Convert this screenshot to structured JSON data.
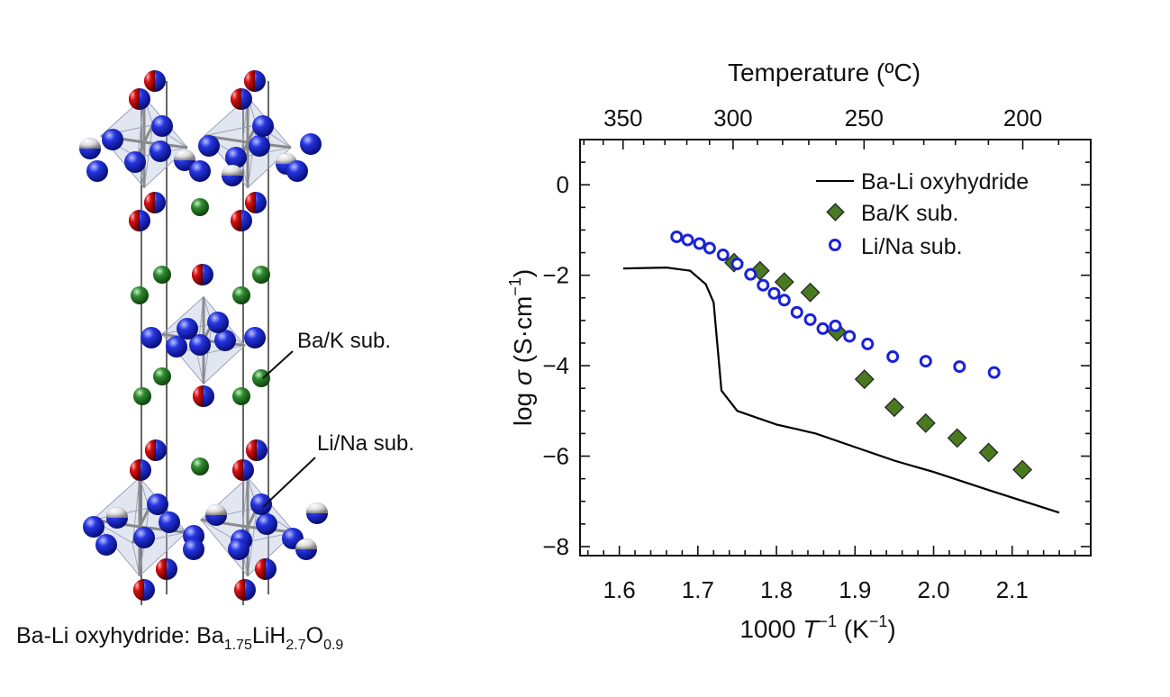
{
  "structure": {
    "caption_prefix": "Ba-Li oxyhydride: ",
    "formula": [
      {
        "text": "Ba",
        "sub": "1.75"
      },
      {
        "text": "LiH",
        "sub": "2.7"
      },
      {
        "text": "O",
        "sub": "0.9"
      }
    ],
    "labels": {
      "ba_k": "Ba/K sub.",
      "li_na": "Li/Na sub."
    },
    "colors": {
      "oxygen_red": "#d01010",
      "blue_atom": "#1020d0",
      "green_atom": "#2e8b2e",
      "polyhedron": "#b8bedc"
    }
  },
  "chart_data": {
    "type": "scatter",
    "xlabel_prefix": "1000 ",
    "xlabel_var": "T",
    "xlabel_exp": "−1",
    "xlabel_unit_open": " (K",
    "xlabel_unit_exp": "−1",
    "xlabel_unit_close": ")",
    "ylabel_prefix": "log ",
    "ylabel_var": "σ",
    "ylabel_unit": " (S·cm",
    "ylabel_unit_exp": "−1",
    "ylabel_unit_close": ")",
    "top_axis_label": "Temperature (ºC)",
    "xlim": [
      1.55,
      2.2
    ],
    "ylim": [
      -8.2,
      1.0
    ],
    "x_ticks": [
      "1.6",
      "1.7",
      "1.8",
      "1.9",
      "2.0",
      "2.1"
    ],
    "y_ticks": [
      "0",
      "-2",
      "-4",
      "-6",
      "-8"
    ],
    "top_ticks": [
      "350",
      "300",
      "250",
      "200"
    ],
    "legend_position": "top-right",
    "series": [
      {
        "name": "Ba-Li oxyhydride",
        "style": "line",
        "color": "#000000",
        "x": [
          1.605,
          1.66,
          1.69,
          1.71,
          1.72,
          1.73,
          1.75,
          1.8,
          1.85,
          1.9,
          1.95,
          2.0,
          2.07,
          2.16
        ],
        "y": [
          -1.85,
          -1.83,
          -1.9,
          -2.2,
          -2.6,
          -4.55,
          -5.0,
          -5.3,
          -5.5,
          -5.8,
          -6.1,
          -6.35,
          -6.75,
          -7.25
        ]
      },
      {
        "name": "Ba/K sub.",
        "style": "diamond",
        "color": "#4a7a1f",
        "x": [
          1.746,
          1.779,
          1.81,
          1.843,
          1.877,
          1.912,
          1.95,
          1.99,
          2.03,
          2.07,
          2.113
        ],
        "y": [
          -1.72,
          -1.9,
          -2.15,
          -2.38,
          -3.25,
          -4.3,
          -4.92,
          -5.27,
          -5.6,
          -5.92,
          -6.3
        ]
      },
      {
        "name": "Li/Na sub.",
        "style": "open-circle",
        "color": "#1a22d8",
        "x": [
          1.673,
          1.687,
          1.702,
          1.715,
          1.732,
          1.75,
          1.767,
          1.783,
          1.797,
          1.81,
          1.826,
          1.843,
          1.859,
          1.875,
          1.893,
          1.916,
          1.948,
          1.99,
          2.033,
          2.077
        ],
        "y": [
          -1.15,
          -1.22,
          -1.3,
          -1.4,
          -1.55,
          -1.75,
          -1.98,
          -2.22,
          -2.4,
          -2.55,
          -2.82,
          -2.98,
          -3.18,
          -3.12,
          -3.35,
          -3.52,
          -3.8,
          -3.9,
          -4.02,
          -4.15
        ]
      }
    ]
  }
}
